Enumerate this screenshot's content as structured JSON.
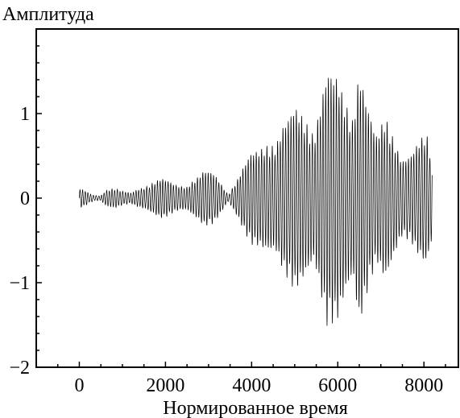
{
  "chart_data": {
    "type": "line",
    "title": "",
    "ylabel": "Амплитуда",
    "xlabel": "Нормированное время",
    "xlim": [
      -1000,
      8800
    ],
    "ylim": [
      -2,
      2
    ],
    "xticks": [
      0,
      2000,
      4000,
      6000,
      8000
    ],
    "xtick_labels": [
      "0",
      "2000",
      "4000",
      "6000",
      "8000"
    ],
    "yticks": [
      -2,
      -1,
      0,
      1
    ],
    "ytick_labels": [
      "−2",
      "−1",
      "0",
      "1"
    ],
    "grid": false,
    "line_color": "#000000",
    "series": [
      {
        "x_range": [
          0,
          8190
        ],
        "carrier_period": 62,
        "envelope_points": [
          [
            0,
            0.1
          ],
          [
            150,
            0.08
          ],
          [
            350,
            0.05
          ],
          [
            500,
            0.02
          ],
          [
            600,
            0.07
          ],
          [
            850,
            0.12
          ],
          [
            1000,
            0.1
          ],
          [
            1200,
            0.05
          ],
          [
            1400,
            0.1
          ],
          [
            1650,
            0.18
          ],
          [
            1900,
            0.22
          ],
          [
            2100,
            0.2
          ],
          [
            2300,
            0.16
          ],
          [
            2500,
            0.12
          ],
          [
            2700,
            0.22
          ],
          [
            2900,
            0.35
          ],
          [
            3100,
            0.3
          ],
          [
            3300,
            0.15
          ],
          [
            3450,
            0.05
          ],
          [
            3700,
            0.25
          ],
          [
            4000,
            0.55
          ],
          [
            4300,
            0.62
          ],
          [
            4550,
            0.6
          ],
          [
            4750,
            0.9
          ],
          [
            5000,
            1.1
          ],
          [
            5250,
            0.9
          ],
          [
            5450,
            0.75
          ],
          [
            5750,
            1.5
          ],
          [
            6000,
            1.45
          ],
          [
            6200,
            1.1
          ],
          [
            6350,
            0.9
          ],
          [
            6500,
            1.5
          ],
          [
            6700,
            1.1
          ],
          [
            6900,
            0.75
          ],
          [
            7100,
            0.95
          ],
          [
            7300,
            0.7
          ],
          [
            7500,
            0.45
          ],
          [
            7700,
            0.5
          ],
          [
            7900,
            0.7
          ],
          [
            8050,
            0.8
          ],
          [
            8190,
            0.5
          ]
        ]
      }
    ]
  }
}
